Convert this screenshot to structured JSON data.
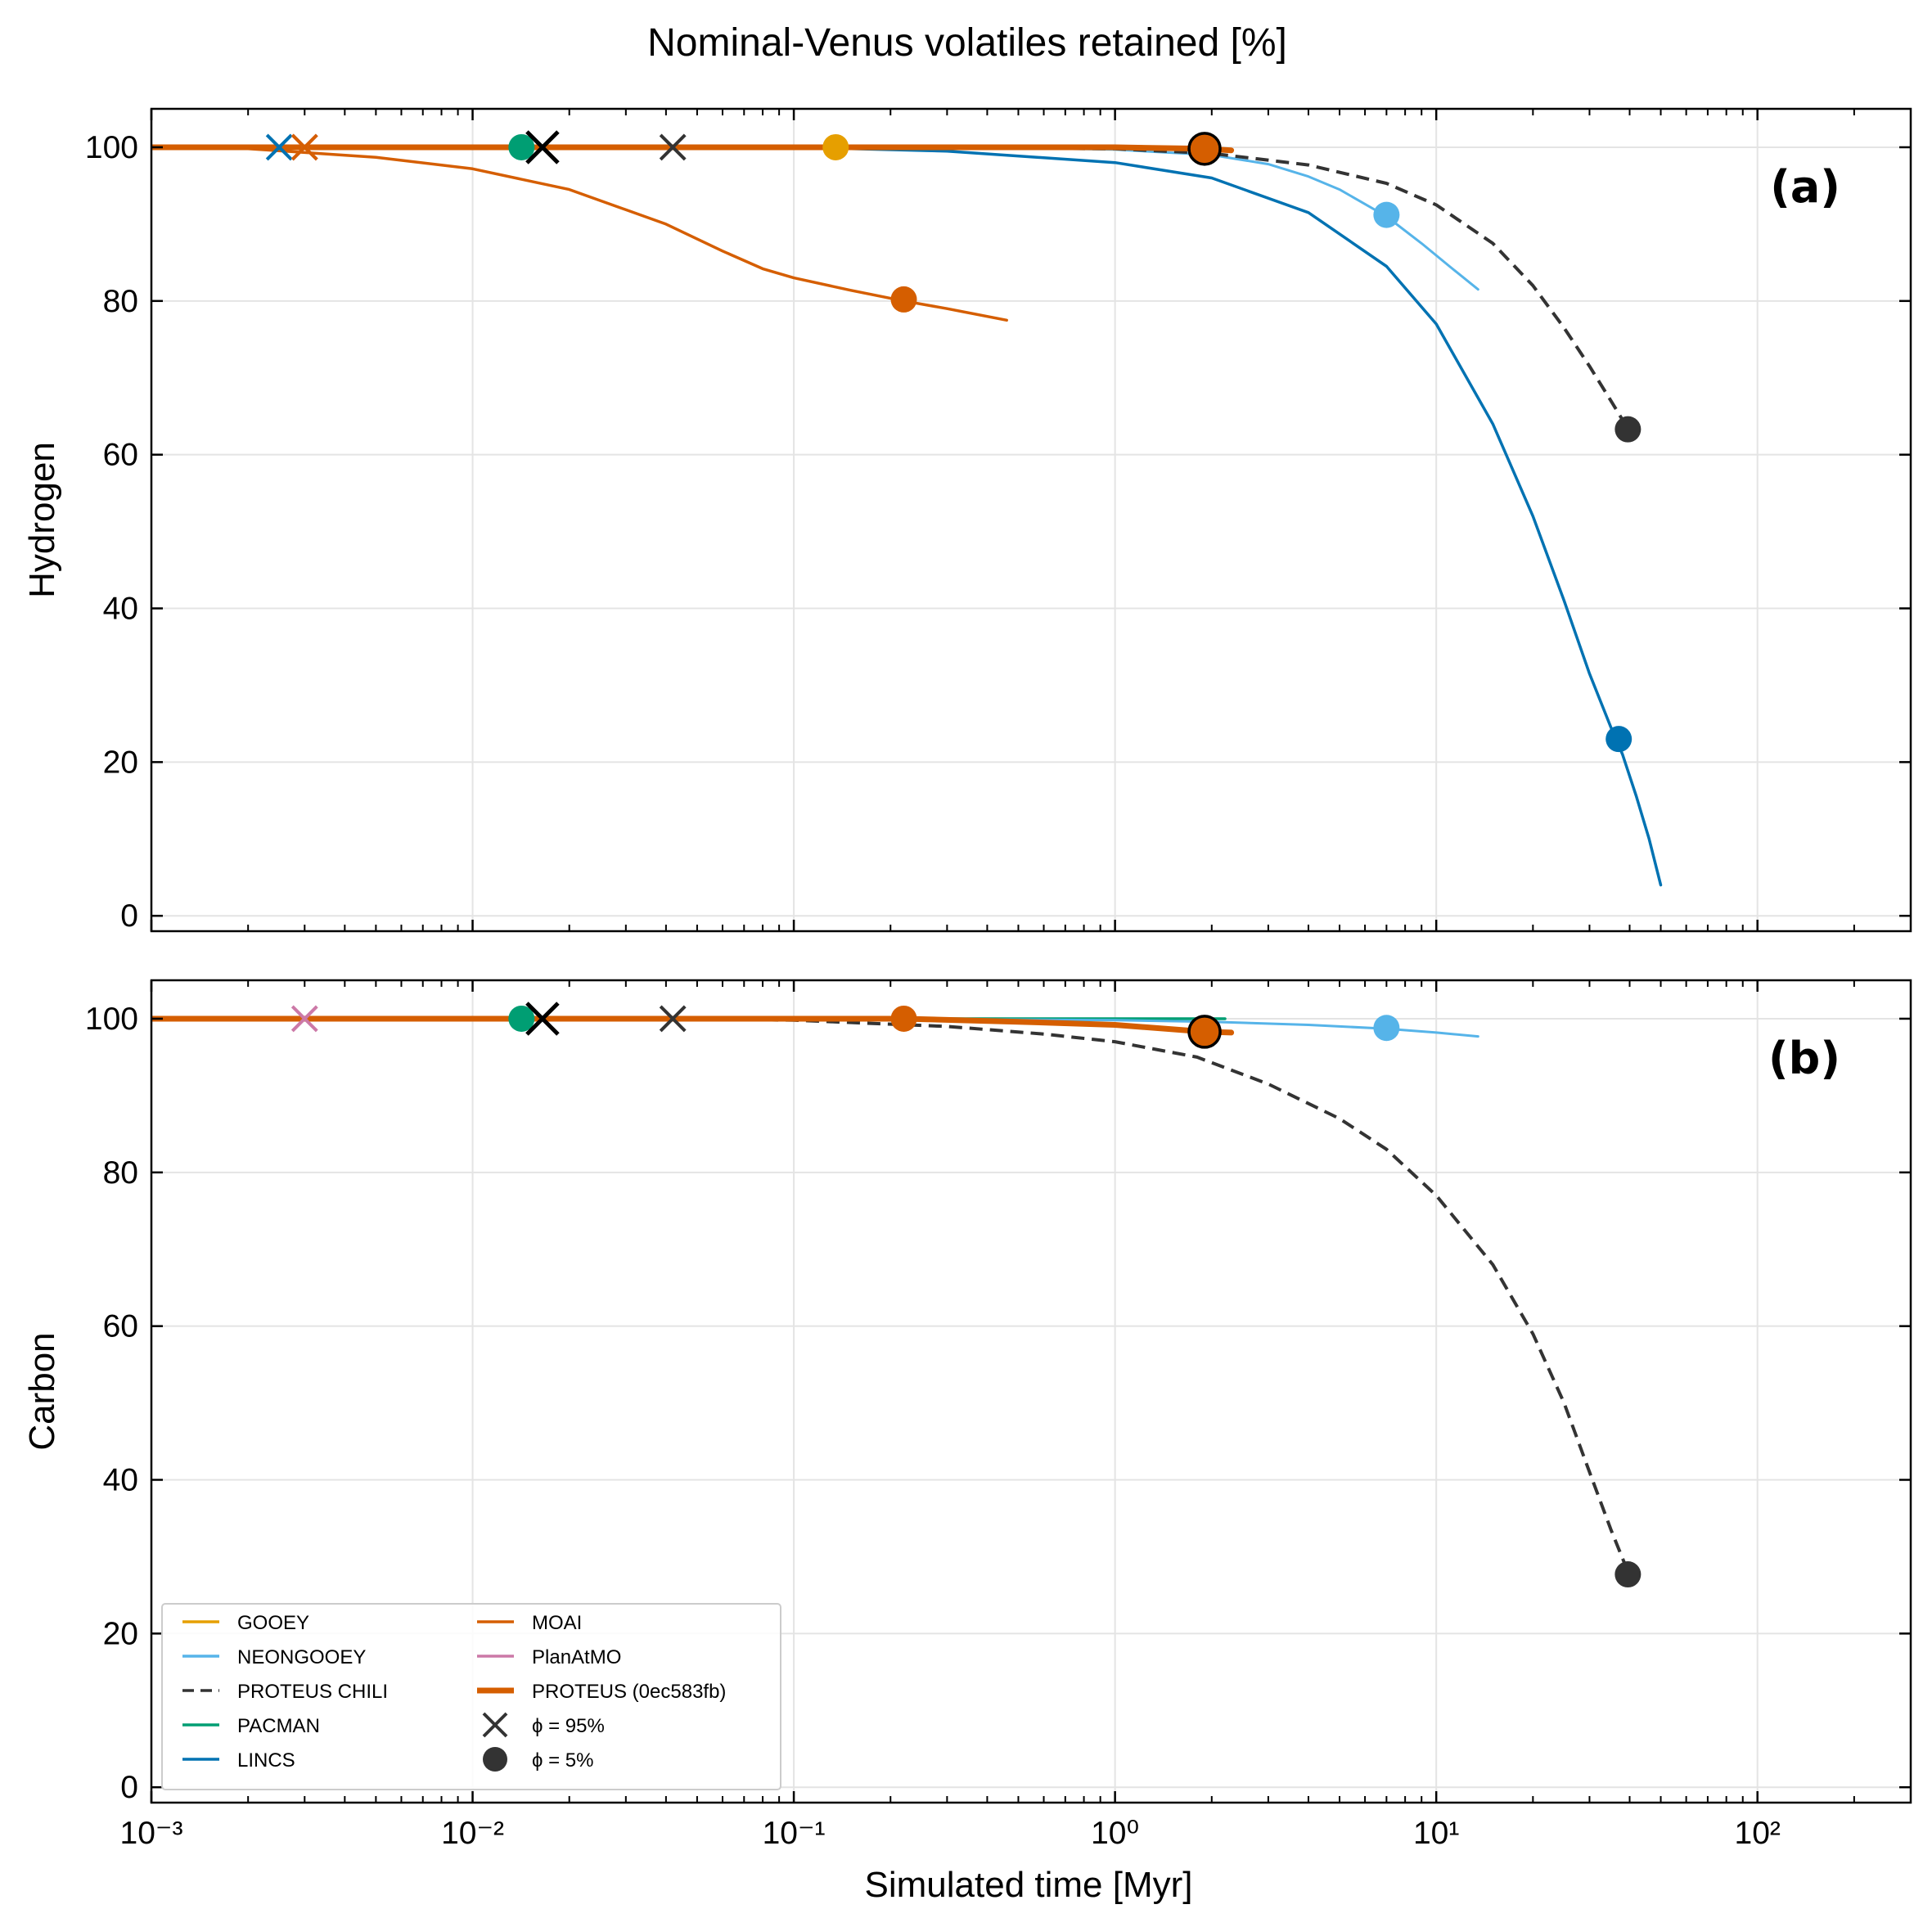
{
  "title": "Nominal-Venus volatiles retained [%]",
  "xlabel": "Simulated time [Myr]",
  "colors": {
    "GOOEY": "#E69F00",
    "NEONGOOEY": "#56B4E9",
    "PROTEUS CHILI": "#333333",
    "PACMAN": "#009E73",
    "LINCS": "#0072B2",
    "MOAI": "#D55E00",
    "PlanAtMO": "#CC79A7",
    "PROTEUS (0ec583fb)": "#D55E00"
  },
  "chart_data": [
    {
      "type": "line",
      "panel_label": "(a)",
      "ylabel": "Hydrogen",
      "xscale": "log",
      "xlim": [
        0.001,
        300
      ],
      "ylim": [
        -2,
        105
      ],
      "xticks": [
        0.001,
        0.01,
        0.1,
        1,
        10,
        100
      ],
      "yticks": [
        0,
        20,
        40,
        60,
        80,
        100
      ],
      "grid": true,
      "series": [
        {
          "name": "NEONGOOEY",
          "width": 3,
          "dash": "",
          "x": [
            0.001,
            0.1,
            0.5,
            1,
            2,
            3,
            4,
            5,
            7,
            9,
            11,
            13.5
          ],
          "y": [
            100,
            100,
            99.9,
            99.7,
            99,
            97.8,
            96.2,
            94.5,
            91,
            87.5,
            84.5,
            81.5
          ]
        },
        {
          "name": "PROTEUS CHILI",
          "width": 4,
          "dash": "16 9",
          "x": [
            0.001,
            0.1,
            1,
            2,
            4,
            7,
            10,
            15,
            20,
            25,
            30,
            35,
            40
          ],
          "y": [
            100,
            100,
            99.8,
            99.2,
            97.7,
            95.3,
            92.5,
            87.5,
            82,
            76.5,
            71.5,
            67,
            63
          ]
        },
        {
          "name": "LINCS",
          "width": 3.5,
          "dash": "",
          "x": [
            0.001,
            0.1,
            0.3,
            1,
            2,
            4,
            7,
            10,
            15,
            20,
            25,
            30,
            35,
            38,
            42,
            46,
            50
          ],
          "y": [
            100,
            100,
            99.5,
            98,
            96,
            91.5,
            84.5,
            77,
            64,
            52,
            41,
            31.5,
            24.5,
            21,
            15.5,
            10,
            4
          ]
        },
        {
          "name": "MOAI",
          "width": 3.5,
          "dash": "",
          "x": [
            0.001,
            0.002,
            0.005,
            0.01,
            0.02,
            0.04,
            0.06,
            0.08,
            0.1,
            0.15,
            0.22,
            0.3,
            0.46
          ],
          "y": [
            100,
            99.8,
            98.7,
            97.2,
            94.5,
            90,
            86.5,
            84.2,
            83,
            81.4,
            80,
            79,
            77.5
          ]
        },
        {
          "name": "PROTEUS (0ec583fb)",
          "width": 7,
          "dash": "",
          "x": [
            0.001,
            0.1,
            1,
            1.9,
            2.3
          ],
          "y": [
            100,
            100,
            100,
            99.8,
            99.6
          ]
        }
      ],
      "markers": [
        {
          "series": "LINCS",
          "kind": "phi95",
          "x": 0.0025,
          "y": 100
        },
        {
          "series": "PlanAtMO",
          "kind": "phi95",
          "x": 0.003,
          "y": 100
        },
        {
          "series": "MOAI",
          "kind": "phi95",
          "x": 0.003,
          "y": 100
        },
        {
          "series": "PACMAN",
          "kind": "phi5",
          "x": 0.0142,
          "y": 100
        },
        {
          "series": "PROTEUS (0ec583fb)",
          "kind": "phi95",
          "x": 0.0165,
          "y": 100
        },
        {
          "series": "PROTEUS CHILI",
          "kind": "phi95",
          "x": 0.042,
          "y": 100
        },
        {
          "series": "GOOEY",
          "kind": "phi5",
          "x": 0.135,
          "y": 100
        },
        {
          "series": "MOAI",
          "kind": "phi5",
          "x": 0.22,
          "y": 80.2
        },
        {
          "series": "PROTEUS (0ec583fb)",
          "kind": "phi5",
          "x": 1.9,
          "y": 99.8
        },
        {
          "series": "NEONGOOEY",
          "kind": "phi5",
          "x": 7,
          "y": 91.2
        },
        {
          "series": "LINCS",
          "kind": "phi5",
          "x": 37,
          "y": 23
        },
        {
          "series": "PROTEUS CHILI",
          "kind": "phi5",
          "x": 39.5,
          "y": 63.3
        }
      ]
    },
    {
      "type": "line",
      "panel_label": "(b)",
      "ylabel": "Carbon",
      "xscale": "log",
      "xlim": [
        0.001,
        300
      ],
      "ylim": [
        -2,
        105
      ],
      "xticks": [
        0.001,
        0.01,
        0.1,
        1,
        10,
        100
      ],
      "xticklabels": [
        "10⁻³",
        "10⁻²",
        "10⁻¹",
        "10⁰",
        "10¹",
        "10²"
      ],
      "yticks": [
        0,
        20,
        40,
        60,
        80,
        100
      ],
      "grid": true,
      "series": [
        {
          "name": "PACMAN",
          "width": 3.5,
          "dash": "",
          "x": [
            0.001,
            0.5,
            1,
            2.2
          ],
          "y": [
            100,
            100,
            100,
            100
          ]
        },
        {
          "name": "NEONGOOEY",
          "width": 3,
          "dash": "",
          "x": [
            0.001,
            0.2,
            1,
            2,
            4,
            7,
            10,
            13.5
          ],
          "y": [
            100,
            100,
            99.8,
            99.6,
            99.2,
            98.7,
            98.2,
            97.7
          ]
        },
        {
          "name": "PROTEUS CHILI",
          "width": 4,
          "dash": "16 9",
          "x": [
            0.001,
            0.04,
            0.1,
            0.3,
            0.6,
            1,
            1.8,
            3,
            5,
            7,
            10,
            15,
            20,
            25,
            30,
            35,
            40
          ],
          "y": [
            100,
            100,
            99.8,
            99,
            98,
            97,
            95,
            91.5,
            87,
            83,
            77,
            68,
            59,
            50,
            41,
            33.5,
            27.5
          ]
        },
        {
          "name": "PROTEUS (0ec583fb)",
          "width": 7,
          "dash": "",
          "x": [
            0.001,
            0.1,
            0.22,
            0.5,
            1,
            1.9,
            2.3
          ],
          "y": [
            100,
            100,
            100,
            99.6,
            99.2,
            98.3,
            98.2
          ]
        }
      ],
      "markers": [
        {
          "series": "PlanAtMO",
          "kind": "phi95",
          "x": 0.003,
          "y": 100
        },
        {
          "series": "PACMAN",
          "kind": "phi5",
          "x": 0.0142,
          "y": 100
        },
        {
          "series": "PROTEUS (0ec583fb)",
          "kind": "phi95",
          "x": 0.0165,
          "y": 100
        },
        {
          "series": "PROTEUS CHILI",
          "kind": "phi95",
          "x": 0.042,
          "y": 100
        },
        {
          "series": "MOAI",
          "kind": "phi5",
          "x": 0.22,
          "y": 100
        },
        {
          "series": "PROTEUS (0ec583fb)",
          "kind": "phi5",
          "x": 1.9,
          "y": 98.3
        },
        {
          "series": "NEONGOOEY",
          "kind": "phi5",
          "x": 7,
          "y": 98.8
        },
        {
          "series": "PROTEUS CHILI",
          "kind": "phi5",
          "x": 39.5,
          "y": 27.7
        }
      ]
    }
  ],
  "legend": {
    "placement": "lower-left",
    "entries": [
      {
        "label": "GOOEY",
        "kind": "line",
        "series": "GOOEY",
        "dash": ""
      },
      {
        "label": "NEONGOOEY",
        "kind": "line",
        "series": "NEONGOOEY",
        "dash": ""
      },
      {
        "label": "PROTEUS CHILI",
        "kind": "line",
        "series": "PROTEUS CHILI",
        "dash": "16 9"
      },
      {
        "label": "PACMAN",
        "kind": "line",
        "series": "PACMAN",
        "dash": ""
      },
      {
        "label": "LINCS",
        "kind": "line",
        "series": "LINCS",
        "dash": ""
      },
      {
        "label": "MOAI",
        "kind": "line",
        "series": "MOAI",
        "dash": ""
      },
      {
        "label": "PlanAtMO",
        "kind": "line",
        "series": "PlanAtMO",
        "dash": ""
      },
      {
        "label": "PROTEUS (0ec583fb)",
        "kind": "thickline",
        "series": "PROTEUS (0ec583fb)",
        "dash": ""
      },
      {
        "label": "ϕ = 95%",
        "kind": "cross",
        "series": "PROTEUS CHILI",
        "dash": ""
      },
      {
        "label": "ϕ = 5%",
        "kind": "dot",
        "series": "PROTEUS CHILI",
        "dash": ""
      }
    ]
  }
}
